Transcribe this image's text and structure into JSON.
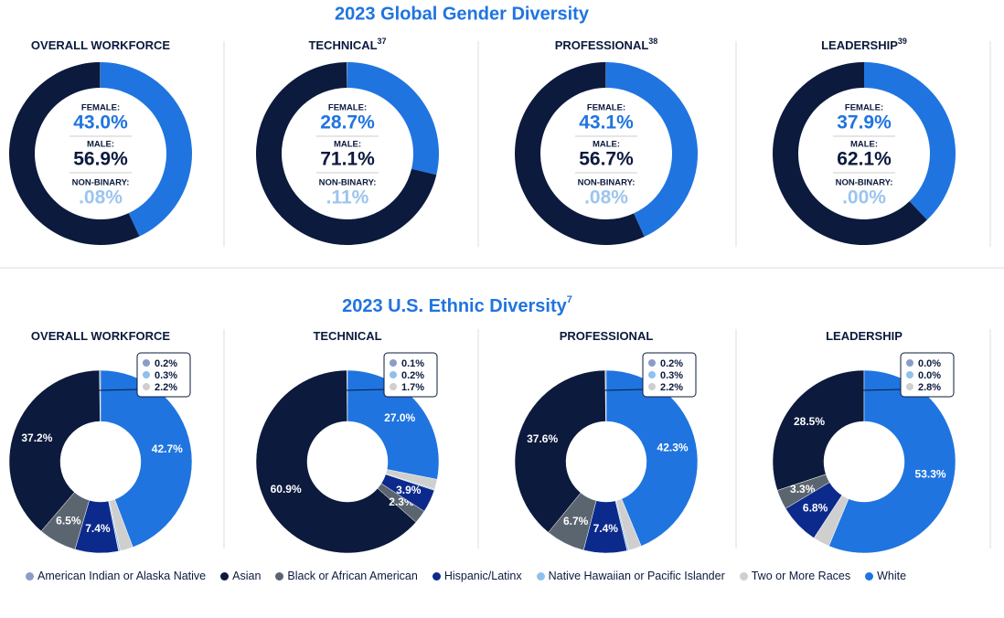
{
  "sections": [
    {
      "title": "2023 Global Gender Diversity"
    },
    {
      "title": "2023 U.S. Ethnic Diversity",
      "title_note": "7"
    }
  ],
  "legend": {
    "labels": [
      "American Indian or Alaska Native",
      "Asian",
      "Black or African American",
      "Hispanic/Latinx",
      "Native Hawaiian or Pacific Islander",
      "Two or More Races",
      "White"
    ],
    "colors": [
      "#8a9cc9",
      "#0b1a3d",
      "#5b6570",
      "#0c2a8c",
      "#8fc0ee",
      "#cfcfcf",
      "#1f74e0"
    ]
  },
  "chart_data": [
    {
      "type": "donut",
      "title": "OVERALL WORKFORCE",
      "categories": [
        "FEMALE:",
        "MALE:",
        "NON-BINARY:"
      ],
      "values": [
        43.0,
        56.9,
        0.08
      ],
      "value_labels": [
        "43.0%",
        "56.9%",
        ".08%"
      ],
      "colors": [
        "#1f74e0",
        "#0b1a3d",
        "#9cc4ee"
      ]
    },
    {
      "type": "donut",
      "title": "TECHNICAL",
      "title_note": "37",
      "categories": [
        "FEMALE:",
        "MALE:",
        "NON-BINARY:"
      ],
      "values": [
        28.7,
        71.1,
        0.11
      ],
      "value_labels": [
        "28.7%",
        "71.1%",
        ".11%"
      ],
      "colors": [
        "#1f74e0",
        "#0b1a3d",
        "#9cc4ee"
      ]
    },
    {
      "type": "donut",
      "title": "PROFESSIONAL",
      "title_note": "38",
      "categories": [
        "FEMALE:",
        "MALE:",
        "NON-BINARY:"
      ],
      "values": [
        43.1,
        56.7,
        0.08
      ],
      "value_labels": [
        "43.1%",
        "56.7%",
        ".08%"
      ],
      "colors": [
        "#1f74e0",
        "#0b1a3d",
        "#9cc4ee"
      ]
    },
    {
      "type": "donut",
      "title": "LEADERSHIP",
      "title_note": "39",
      "categories": [
        "FEMALE:",
        "MALE:",
        "NON-BINARY:"
      ],
      "values": [
        37.9,
        62.1,
        0.0
      ],
      "value_labels": [
        "37.9%",
        "62.1%",
        ".00%"
      ],
      "colors": [
        "#1f74e0",
        "#0b1a3d",
        "#9cc4ee"
      ]
    },
    {
      "type": "donut",
      "title": "OVERALL WORKFORCE",
      "values": [
        0.2,
        37.2,
        6.5,
        7.4,
        0.3,
        2.2,
        42.7
      ],
      "value_labels": [
        "0.2%",
        "37.2%",
        "6.5%",
        "7.4%",
        "0.3%",
        "2.2%",
        "42.7%"
      ]
    },
    {
      "type": "donut",
      "title": "TECHNICAL",
      "values": [
        0.1,
        60.9,
        2.3,
        3.9,
        0.2,
        1.7,
        27.0
      ],
      "value_labels": [
        "0.1%",
        "60.9%",
        "2.3%",
        "3.9%",
        "0.2%",
        "1.7%",
        "27.0%"
      ]
    },
    {
      "type": "donut",
      "title": "PROFESSIONAL",
      "values": [
        0.2,
        37.6,
        6.7,
        7.4,
        0.3,
        2.2,
        42.3
      ],
      "value_labels": [
        "0.2%",
        "37.6%",
        "6.7%",
        "7.4%",
        "0.3%",
        "2.2%",
        "42.3%"
      ]
    },
    {
      "type": "donut",
      "title": "LEADERSHIP",
      "values": [
        0.0,
        28.5,
        3.3,
        6.8,
        0.0,
        2.8,
        53.3
      ],
      "value_labels": [
        "0.0%",
        "28.5%",
        "3.3%",
        "6.8%",
        "0.0%",
        "2.8%",
        "53.3%"
      ]
    }
  ]
}
